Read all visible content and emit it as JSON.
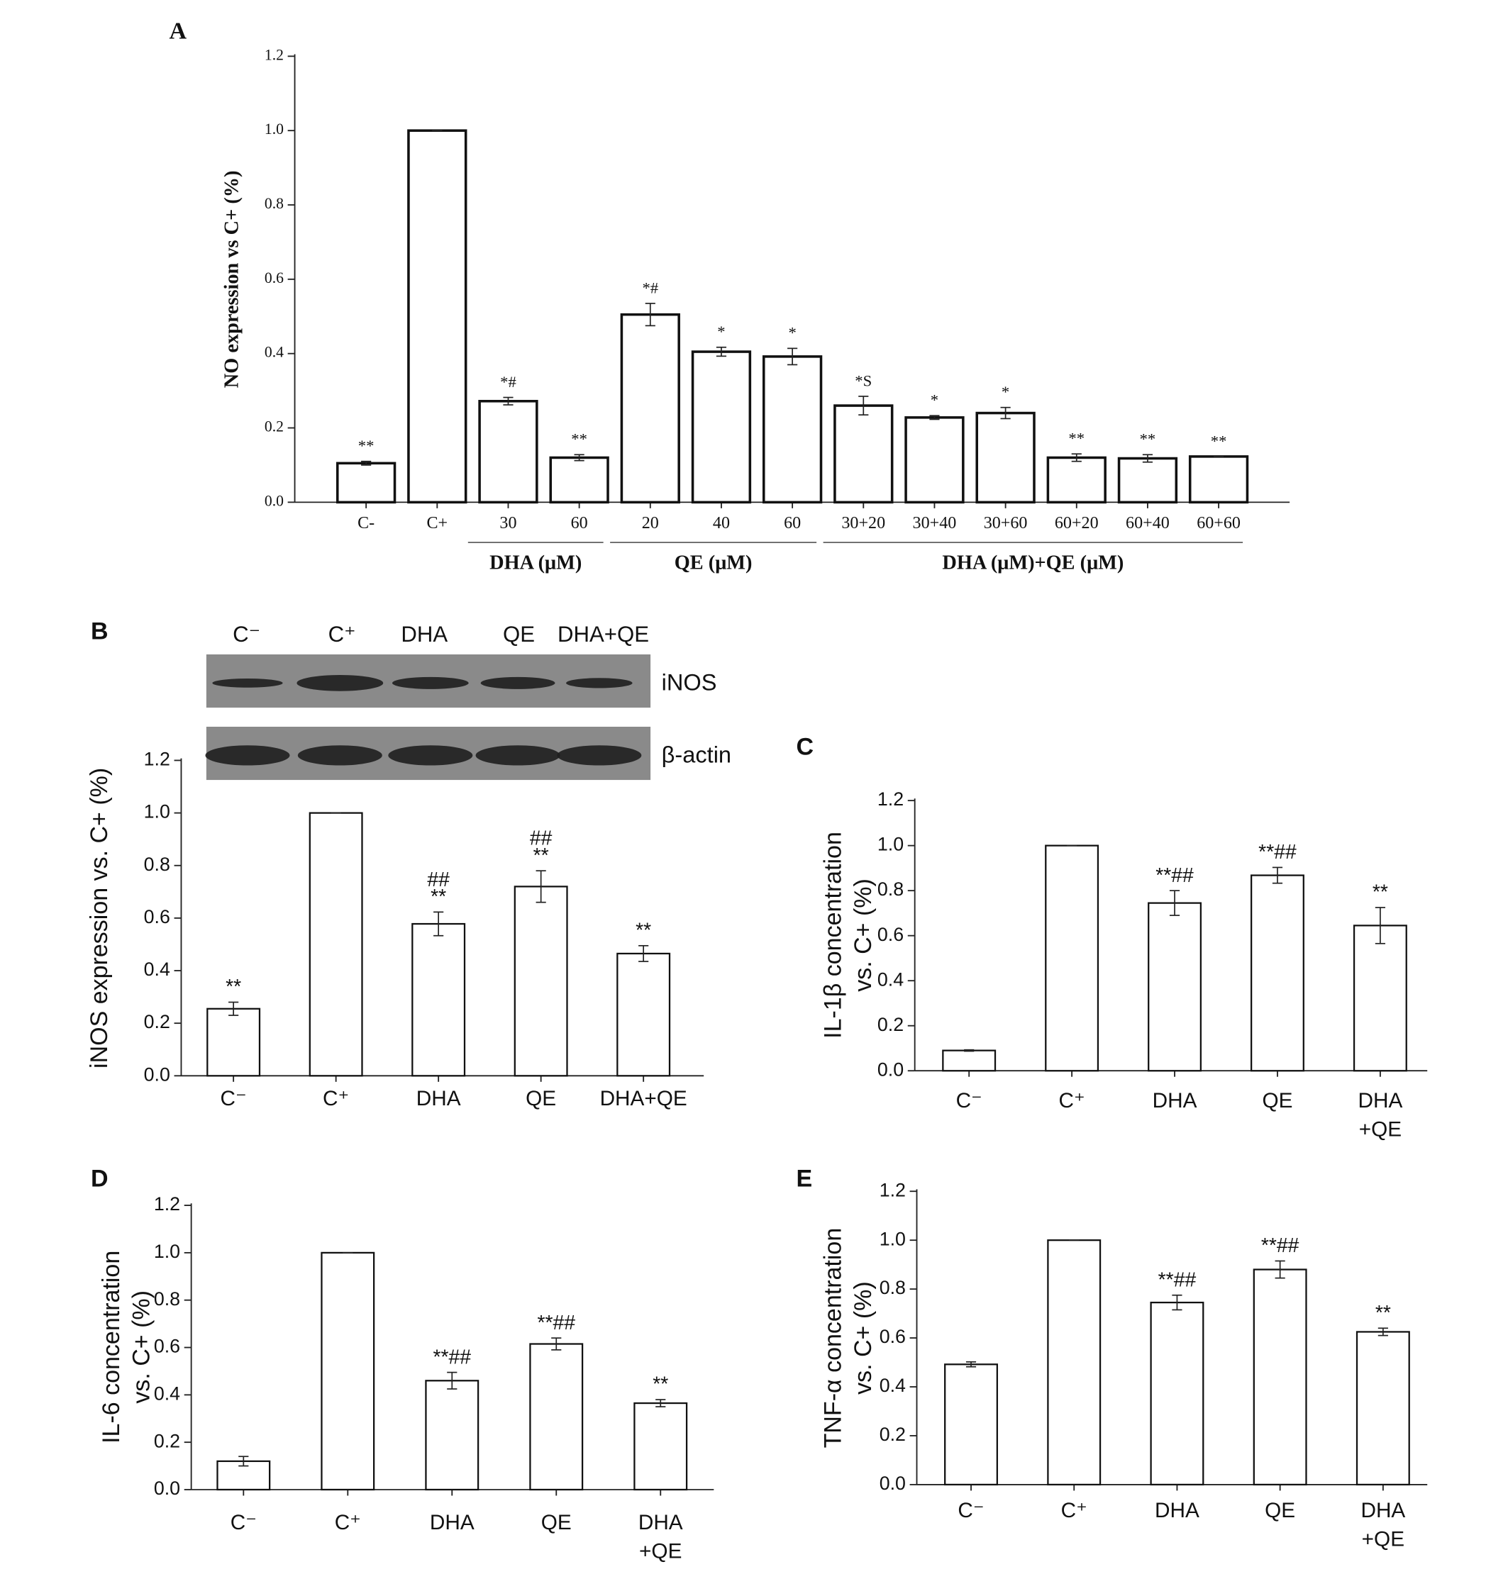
{
  "chart_data": [
    {
      "type": "bar",
      "panel": "A",
      "ylabel": "NO expression vs C+ (%)",
      "categories": [
        "C-",
        "C+",
        "30",
        "60",
        "20",
        "40",
        "60",
        "30+20",
        "30+40",
        "30+60",
        "60+20",
        "60+40",
        "60+60"
      ],
      "values": [
        0.105,
        1.0,
        0.272,
        0.12,
        0.505,
        0.405,
        0.392,
        0.26,
        0.228,
        0.24,
        0.12,
        0.118,
        0.123
      ],
      "errors": [
        0.005,
        0,
        0.01,
        0.008,
        0.03,
        0.012,
        0.022,
        0.025,
        0.005,
        0.015,
        0.01,
        0.01,
        0
      ],
      "annotations": [
        [
          "**"
        ],
        null,
        [
          "*#"
        ],
        [
          "**"
        ],
        [
          "*#"
        ],
        [
          "*"
        ],
        [
          "*"
        ],
        [
          "*S"
        ],
        [
          "*"
        ],
        [
          "*"
        ],
        [
          "**"
        ],
        [
          "**"
        ],
        [
          "**"
        ]
      ],
      "groups": [
        "DHA (μM)",
        "QE (μM)",
        "DHA (μM)+QE (μM)"
      ],
      "color": "#ffffff",
      "ylim": [
        0,
        1.2
      ],
      "yticks": [
        {
          "value": 0,
          "label": "0.0"
        },
        {
          "value": 0.2,
          "label": "0.2"
        },
        {
          "value": 0.4,
          "label": "0.4"
        },
        {
          "value": 0.6,
          "label": "0.6"
        },
        {
          "value": 0.8,
          "label": "0.8"
        },
        {
          "value": 1.0,
          "label": "1.0"
        },
        {
          "value": 1.2,
          "label": "1.2"
        }
      ]
    },
    {
      "type": "bar",
      "panel": "B",
      "ylabel": "iNOS expression vs. C+ (%)",
      "blot": {
        "lanes": [
          "C⁻",
          "C⁺",
          "DHA",
          "QE",
          "DHA+QE"
        ],
        "rows": [
          "iNOS",
          "β-actin"
        ]
      },
      "categories": [
        "C⁻",
        "C⁺",
        "DHA",
        "QE",
        "DHA+QE"
      ],
      "values": [
        0.255,
        1.0,
        0.578,
        0.72,
        0.465
      ],
      "errors": [
        0.025,
        0,
        0.045,
        0.06,
        0.03
      ],
      "annotations": [
        [
          "**"
        ],
        null,
        [
          "##",
          "**"
        ],
        [
          "##",
          "**"
        ],
        [
          "**"
        ]
      ],
      "color": "#ffffff",
      "ylim": [
        0,
        1.2
      ],
      "yticks": [
        {
          "value": 0,
          "label": "0.0"
        },
        {
          "value": 0.2,
          "label": "0.2"
        },
        {
          "value": 0.4,
          "label": "0.4"
        },
        {
          "value": 0.6,
          "label": "0.6"
        },
        {
          "value": 0.8,
          "label": "0.8"
        },
        {
          "value": 1.0,
          "label": "1.0"
        },
        {
          "value": 1.2,
          "label": "1.2"
        }
      ]
    },
    {
      "type": "bar",
      "panel": "C",
      "ylabel": [
        "IL-1β  concentration",
        "vs. C+  (%)"
      ],
      "categories": [
        "C⁻",
        "C⁺",
        "DHA",
        "QE",
        [
          "DHA",
          "+QE"
        ]
      ],
      "values": [
        0.09,
        1.0,
        0.745,
        0.868,
        0.645
      ],
      "errors": [
        0.003,
        0,
        0.055,
        0.035,
        0.08
      ],
      "annotations": [
        null,
        null,
        [
          "**##"
        ],
        [
          "**##"
        ],
        [
          "**"
        ]
      ],
      "color": "#ffffff",
      "ylim": [
        0,
        1.2
      ],
      "yticks": [
        {
          "value": 0,
          "label": "0.0"
        },
        {
          "value": 0.2,
          "label": "0.2"
        },
        {
          "value": 0.4,
          "label": "0.4"
        },
        {
          "value": 0.6,
          "label": "0.6"
        },
        {
          "value": 0.8,
          "label": "0.8"
        },
        {
          "value": 1.0,
          "label": "1.0"
        },
        {
          "value": 1.2,
          "label": "1.2"
        }
      ]
    },
    {
      "type": "bar",
      "panel": "D",
      "ylabel": [
        "IL-6  concentration",
        "vs. C+ (%)"
      ],
      "categories": [
        "C⁻",
        "C⁺",
        "DHA",
        "QE",
        [
          "DHA",
          "+QE"
        ]
      ],
      "values": [
        0.12,
        1.0,
        0.46,
        0.615,
        0.365
      ],
      "errors": [
        0.02,
        0,
        0.035,
        0.025,
        0.015
      ],
      "annotations": [
        null,
        null,
        [
          "**##"
        ],
        [
          "**##"
        ],
        [
          "**"
        ]
      ],
      "color": "#ffffff",
      "ylim": [
        0,
        1.2
      ],
      "yticks": [
        {
          "value": 0,
          "label": "0.0"
        },
        {
          "value": 0.2,
          "label": "0.2"
        },
        {
          "value": 0.4,
          "label": "0.4"
        },
        {
          "value": 0.6,
          "label": "0.6"
        },
        {
          "value": 0.8,
          "label": "0.8"
        },
        {
          "value": 1.0,
          "label": "1.0"
        },
        {
          "value": 1.2,
          "label": "1.2"
        }
      ]
    },
    {
      "type": "bar",
      "panel": "E",
      "ylabel": [
        "TNF-α concentration",
        "vs. C+ (%)"
      ],
      "categories": [
        "C⁻",
        "C⁺",
        "DHA",
        "QE",
        [
          "DHA",
          "+QE"
        ]
      ],
      "values": [
        0.492,
        1.0,
        0.745,
        0.88,
        0.625
      ],
      "errors": [
        0.01,
        0,
        0.03,
        0.035,
        0.015
      ],
      "annotations": [
        null,
        null,
        [
          "**##"
        ],
        [
          "**##"
        ],
        [
          "**"
        ]
      ],
      "color": "#ffffff",
      "ylim": [
        0,
        1.2
      ],
      "yticks": [
        {
          "value": 0,
          "label": "0.0"
        },
        {
          "value": 0.2,
          "label": "0.2"
        },
        {
          "value": 0.4,
          "label": "0.4"
        },
        {
          "value": 0.6,
          "label": "0.6"
        },
        {
          "value": 0.8,
          "label": "0.8"
        },
        {
          "value": 1.0,
          "label": "1.0"
        },
        {
          "value": 1.2,
          "label": "1.2"
        }
      ]
    }
  ]
}
